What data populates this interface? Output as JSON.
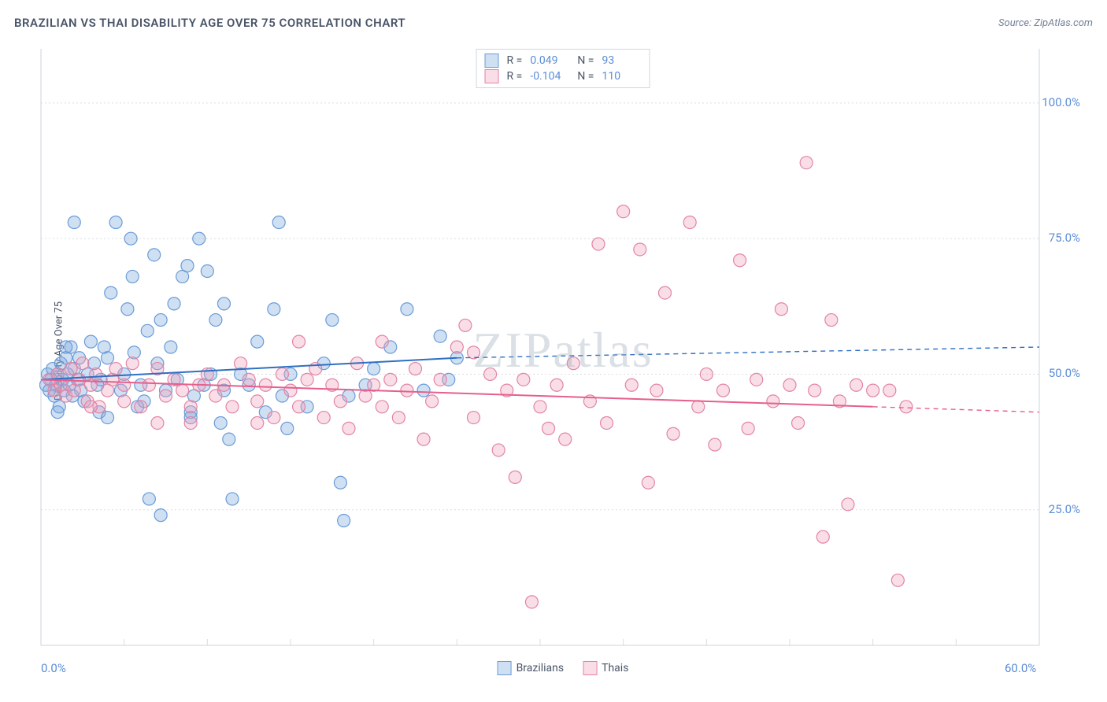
{
  "header": {
    "title": "BRAZILIAN VS THAI DISABILITY AGE OVER 75 CORRELATION CHART",
    "source": "Source: ZipAtlas.com"
  },
  "watermark": "ZIPatlas",
  "chart": {
    "type": "scatter",
    "y_label": "Disability Age Over 75",
    "background_color": "#ffffff",
    "grid_color": "#d9dde2",
    "axis_color": "#cbd5e0",
    "xlim": [
      0,
      60
    ],
    "ylim": [
      0,
      110
    ],
    "x_ticks": [
      0,
      5,
      10,
      15,
      20,
      25,
      30,
      35,
      40,
      45,
      50,
      55,
      60
    ],
    "x_tick_labels": {
      "0": "0.0%",
      "60": "60.0%"
    },
    "y_gridlines": [
      25,
      50,
      75,
      100
    ],
    "y_tick_labels": {
      "25": "25.0%",
      "50": "50.0%",
      "75": "75.0%",
      "100": "100.0%"
    },
    "marker_radius": 8,
    "marker_stroke_width": 1.2,
    "trend_line_width": 2,
    "series": [
      {
        "name": "Brazilians",
        "fill": "rgba(120,165,220,0.35)",
        "stroke": "#6a9bd8",
        "trend_color": "#2f6fc2",
        "R": "0.049",
        "N": "93",
        "trend": {
          "x1": 0,
          "y1": 49,
          "x2_solid": 25,
          "y2_solid": 53,
          "x2_dash": 60,
          "y2_dash": 55
        },
        "points": [
          [
            0.3,
            48
          ],
          [
            0.4,
            50
          ],
          [
            0.5,
            47
          ],
          [
            0.6,
            49
          ],
          [
            0.7,
            51
          ],
          [
            0.8,
            46
          ],
          [
            0.9,
            48
          ],
          [
            1.0,
            50
          ],
          [
            1.1,
            44
          ],
          [
            1.2,
            52
          ],
          [
            1.3,
            49
          ],
          [
            1.4,
            47
          ],
          [
            1.5,
            53
          ],
          [
            1.6,
            50
          ],
          [
            1.7,
            48
          ],
          [
            1.8,
            55
          ],
          [
            1.9,
            46
          ],
          [
            2.0,
            51
          ],
          [
            2.2,
            49
          ],
          [
            2.4,
            47
          ],
          [
            2.6,
            45
          ],
          [
            2.8,
            50
          ],
          [
            3.0,
            56
          ],
          [
            3.2,
            52
          ],
          [
            3.4,
            48
          ],
          [
            3.6,
            49
          ],
          [
            3.8,
            55
          ],
          [
            4.0,
            53
          ],
          [
            4.2,
            65
          ],
          [
            4.5,
            78
          ],
          [
            4.8,
            47
          ],
          [
            5.0,
            50
          ],
          [
            5.2,
            62
          ],
          [
            5.4,
            75
          ],
          [
            5.6,
            54
          ],
          [
            5.8,
            44
          ],
          [
            6.0,
            48
          ],
          [
            6.2,
            45
          ],
          [
            6.4,
            58
          ],
          [
            6.8,
            72
          ],
          [
            7.0,
            52
          ],
          [
            7.2,
            60
          ],
          [
            7.5,
            47
          ],
          [
            7.8,
            55
          ],
          [
            8.0,
            63
          ],
          [
            8.2,
            49
          ],
          [
            8.5,
            68
          ],
          [
            8.8,
            70
          ],
          [
            9.0,
            43
          ],
          [
            9.2,
            46
          ],
          [
            9.5,
            75
          ],
          [
            9.8,
            48
          ],
          [
            10.0,
            69
          ],
          [
            10.2,
            50
          ],
          [
            10.5,
            60
          ],
          [
            10.8,
            41
          ],
          [
            11.0,
            47
          ],
          [
            11.3,
            38
          ],
          [
            11.5,
            27
          ],
          [
            12.0,
            50
          ],
          [
            12.5,
            48
          ],
          [
            13.0,
            56
          ],
          [
            13.5,
            43
          ],
          [
            14.0,
            62
          ],
          [
            14.3,
            78
          ],
          [
            14.5,
            46
          ],
          [
            14.8,
            40
          ],
          [
            15.0,
            50
          ],
          [
            16.0,
            44
          ],
          [
            17.0,
            52
          ],
          [
            17.5,
            60
          ],
          [
            18.0,
            30
          ],
          [
            18.2,
            23
          ],
          [
            18.5,
            46
          ],
          [
            19.5,
            48
          ],
          [
            20.0,
            51
          ],
          [
            21.0,
            55
          ],
          [
            22.0,
            62
          ],
          [
            23.0,
            47
          ],
          [
            24.0,
            57
          ],
          [
            24.5,
            49
          ],
          [
            25.0,
            53
          ],
          [
            7.2,
            24
          ],
          [
            6.5,
            27
          ],
          [
            2.0,
            78
          ],
          [
            5.5,
            68
          ],
          [
            3.5,
            43
          ],
          [
            9.0,
            42
          ],
          [
            11.0,
            63
          ],
          [
            4.0,
            42
          ],
          [
            1.0,
            43
          ],
          [
            1.5,
            55
          ],
          [
            2.3,
            53
          ]
        ]
      },
      {
        "name": "Thais",
        "fill": "rgba(240,160,185,0.35)",
        "stroke": "#e284a5",
        "trend_color": "#e65f8e",
        "R": "-0.104",
        "N": "110",
        "trend": {
          "x1": 0,
          "y1": 49,
          "x2_solid": 50,
          "y2_solid": 44,
          "x2_dash": 60,
          "y2_dash": 43
        },
        "points": [
          [
            0.5,
            49
          ],
          [
            0.8,
            47
          ],
          [
            1.0,
            50
          ],
          [
            1.2,
            48
          ],
          [
            1.5,
            46
          ],
          [
            1.8,
            51
          ],
          [
            2.0,
            47
          ],
          [
            2.3,
            49
          ],
          [
            2.5,
            52
          ],
          [
            2.8,
            45
          ],
          [
            3.0,
            48
          ],
          [
            3.3,
            50
          ],
          [
            3.5,
            44
          ],
          [
            4.0,
            47
          ],
          [
            4.3,
            49
          ],
          [
            4.5,
            51
          ],
          [
            5.0,
            48
          ],
          [
            5.5,
            52
          ],
          [
            6.0,
            44
          ],
          [
            6.5,
            48
          ],
          [
            7.0,
            51
          ],
          [
            7.5,
            46
          ],
          [
            8.0,
            49
          ],
          [
            8.5,
            47
          ],
          [
            9.0,
            44
          ],
          [
            9.5,
            48
          ],
          [
            10.0,
            50
          ],
          [
            10.5,
            46
          ],
          [
            11.0,
            48
          ],
          [
            11.5,
            44
          ],
          [
            12.0,
            52
          ],
          [
            12.5,
            49
          ],
          [
            13.0,
            45
          ],
          [
            13.5,
            48
          ],
          [
            14.0,
            42
          ],
          [
            14.5,
            50
          ],
          [
            15.0,
            47
          ],
          [
            15.5,
            44
          ],
          [
            16.0,
            49
          ],
          [
            16.5,
            51
          ],
          [
            17.0,
            42
          ],
          [
            17.5,
            48
          ],
          [
            18.0,
            45
          ],
          [
            18.5,
            40
          ],
          [
            19.0,
            52
          ],
          [
            19.5,
            46
          ],
          [
            20.0,
            48
          ],
          [
            20.5,
            44
          ],
          [
            21.0,
            49
          ],
          [
            21.5,
            42
          ],
          [
            22.0,
            47
          ],
          [
            22.5,
            51
          ],
          [
            23.0,
            38
          ],
          [
            23.5,
            45
          ],
          [
            24.0,
            49
          ],
          [
            25.0,
            55
          ],
          [
            25.5,
            59
          ],
          [
            26.0,
            42
          ],
          [
            27.0,
            50
          ],
          [
            27.5,
            36
          ],
          [
            28.0,
            47
          ],
          [
            28.5,
            31
          ],
          [
            29.0,
            49
          ],
          [
            29.5,
            8
          ],
          [
            30.0,
            44
          ],
          [
            30.5,
            40
          ],
          [
            31.0,
            48
          ],
          [
            31.5,
            38
          ],
          [
            32.0,
            52
          ],
          [
            33.0,
            45
          ],
          [
            33.5,
            74
          ],
          [
            34.0,
            41
          ],
          [
            35.0,
            80
          ],
          [
            35.5,
            48
          ],
          [
            36.0,
            73
          ],
          [
            36.5,
            30
          ],
          [
            37.0,
            47
          ],
          [
            37.5,
            65
          ],
          [
            38.0,
            39
          ],
          [
            39.0,
            78
          ],
          [
            39.5,
            44
          ],
          [
            40.0,
            50
          ],
          [
            40.5,
            37
          ],
          [
            41.0,
            47
          ],
          [
            42.0,
            71
          ],
          [
            42.5,
            40
          ],
          [
            43.0,
            49
          ],
          [
            44.0,
            45
          ],
          [
            44.5,
            62
          ],
          [
            45.0,
            48
          ],
          [
            45.5,
            41
          ],
          [
            46.0,
            89
          ],
          [
            46.5,
            47
          ],
          [
            47.0,
            20
          ],
          [
            47.5,
            60
          ],
          [
            48.0,
            45
          ],
          [
            48.5,
            26
          ],
          [
            49.0,
            48
          ],
          [
            50.0,
            47
          ],
          [
            51.0,
            47
          ],
          [
            51.5,
            12
          ],
          [
            52.0,
            44
          ],
          [
            3.0,
            44
          ],
          [
            5.0,
            45
          ],
          [
            7.0,
            41
          ],
          [
            9.0,
            41
          ],
          [
            13.0,
            41
          ],
          [
            26.0,
            54
          ],
          [
            15.5,
            56
          ],
          [
            20.5,
            56
          ]
        ]
      }
    ],
    "legend": {
      "top_labels": [
        "R =",
        "N ="
      ],
      "bottom": [
        "Brazilians",
        "Thais"
      ]
    }
  }
}
